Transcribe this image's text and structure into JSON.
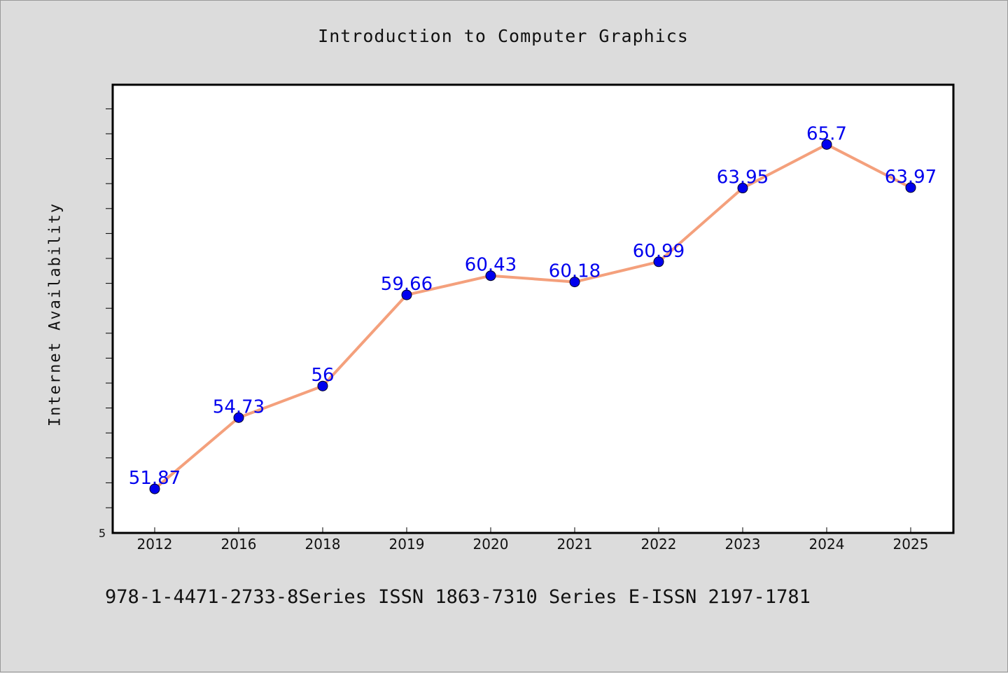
{
  "chart_data": {
    "type": "line",
    "title": "Introduction to Computer Graphics",
    "xlabel": "",
    "ylabel": "Internet Availability",
    "categories": [
      "2012",
      "2016",
      "2018",
      "2019",
      "2020",
      "2021",
      "2022",
      "2023",
      "2024",
      "2025"
    ],
    "series": [
      {
        "values": [
          51.87,
          54.73,
          56,
          59.66,
          60.43,
          60.18,
          60.99,
          63.95,
          65.7,
          63.97
        ],
        "labels": [
          "51.87",
          "54.73",
          "56",
          "59.66",
          "60.43",
          "60.18",
          "60.99",
          "63.95",
          "65.7",
          "63.97"
        ]
      }
    ],
    "ylim": [
      50.1,
      68.1
    ],
    "y_tick_label": "5",
    "grid": false,
    "legend": "none",
    "colors": {
      "line": "#f4a07c",
      "marker": "#0000ee",
      "label": "#0000ee",
      "plot_bg": "#ffffff",
      "page_bg": "#dcdcdc"
    }
  },
  "footer": "978-1-4471-2733-8Series ISSN 1863-7310 Series E-ISSN 2197-1781"
}
